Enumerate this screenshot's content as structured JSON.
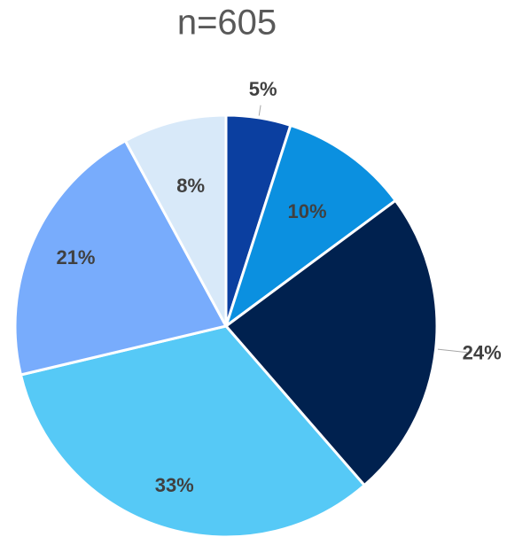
{
  "chart_data": {
    "type": "pie",
    "title": "n=605",
    "values": [
      5,
      10,
      24,
      33,
      21,
      8
    ],
    "value_labels": [
      "5%",
      "10%",
      "24%",
      "33%",
      "21%",
      "8%"
    ],
    "colors": [
      "#0b3fa0",
      "#0b90e0",
      "#00214f",
      "#56c9f6",
      "#78acfc",
      "#d8e9f9"
    ]
  }
}
